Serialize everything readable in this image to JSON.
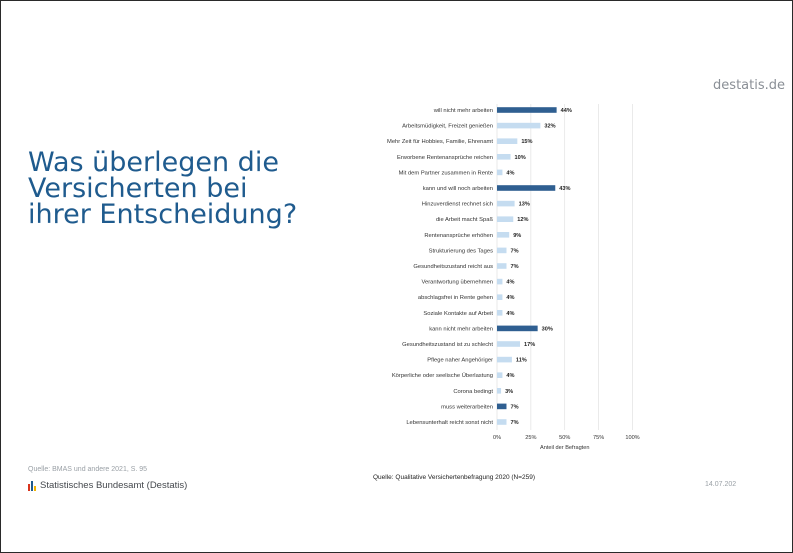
{
  "site": "destatis.de",
  "title": "Was überlegen die Versicherten bei ihrer Entscheidung?",
  "footnote": "Quelle: BMAS und andere 2021, S. 95",
  "org_name": "Statistisches Bundesamt (Destatis)",
  "chart_source": "Quelle: Qualitative Versichertenbefragung 2020 (N=259)",
  "date": "14.07.202",
  "colors": {
    "title": "#1f5b8e",
    "bar_dark": "#2f5f91",
    "bar_light": "#c5dcf0",
    "grid": "#dcdcdc"
  },
  "chart_data": {
    "type": "bar",
    "orientation": "horizontal",
    "categories": [
      "will nicht mehr arbeiten",
      "Arbeitsmüdigkeit, Freizeit genießen",
      "Mehr Zeit für Hobbies, Familie, Ehrenamt",
      "Erworbene Rentenansprüche reichen",
      "Mit dem Partner zusammen in Rente",
      "kann und will noch arbeiten",
      "Hinzuverdienst rechnet sich",
      "die Arbeit macht Spaß",
      "Rentenansprüche erhöhen",
      "Strukturierung des Tages",
      "Gesundheitszustand reicht aus",
      "Verantwortung übernehmen",
      "abschlagsfrei in Rente gehen",
      "Soziale Kontakte auf Arbeit",
      "kann nicht mehr arbeiten",
      "Gesundheitszustand ist zu schlecht",
      "Pflege naher Angehöriger",
      "Körperliche oder seelische Überlastung",
      "Corona bedingt",
      "muss weiterarbeiten",
      "Lebensunterhalt reicht sonst nicht"
    ],
    "values": [
      44,
      32,
      15,
      10,
      4,
      43,
      13,
      12,
      9,
      7,
      7,
      4,
      4,
      4,
      30,
      17,
      11,
      4,
      3,
      7,
      7
    ],
    "value_labels": [
      "44%",
      "32%",
      "15%",
      "10%",
      "4%",
      "43%",
      "13%",
      "12%",
      "9%",
      "7%",
      "7%",
      "4%",
      "4%",
      "4%",
      "30%",
      "17%",
      "11%",
      "4%",
      "3%",
      "7%",
      "7%"
    ],
    "highlight": [
      true,
      false,
      false,
      false,
      false,
      true,
      false,
      false,
      false,
      false,
      false,
      false,
      false,
      false,
      true,
      false,
      false,
      false,
      false,
      true,
      false
    ],
    "xticks": [
      "0%",
      "25%",
      "50%",
      "75%",
      "100%"
    ],
    "xlim": [
      0,
      100
    ],
    "xlabel": "Anteil der Befragten",
    "grid": true
  }
}
